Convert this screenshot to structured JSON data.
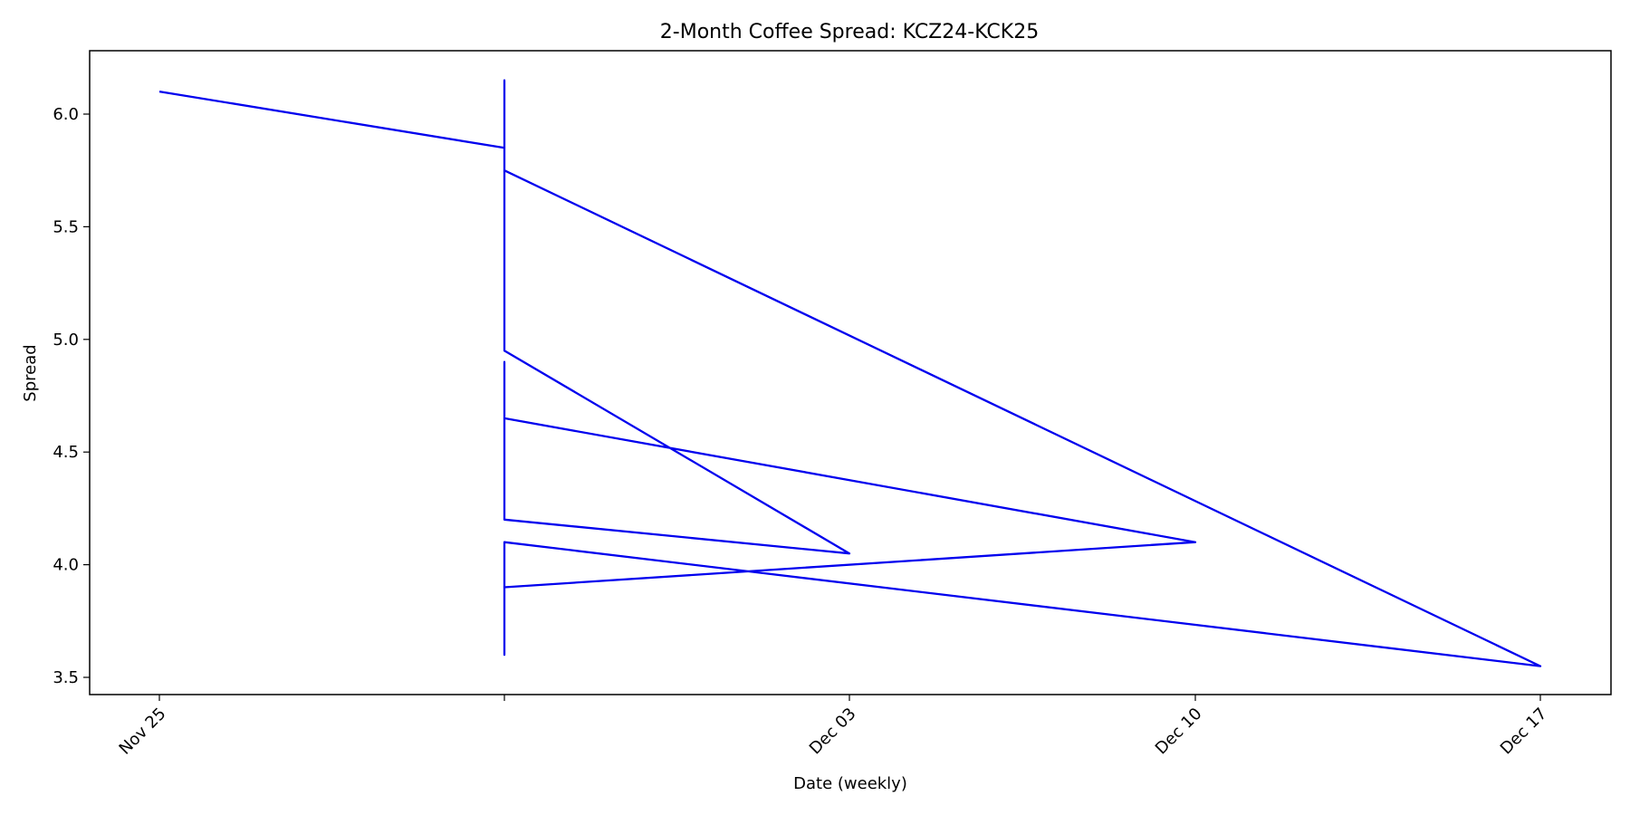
{
  "chart_data": {
    "type": "line",
    "title": "2-Month Coffee Spread: KCZ24-KCK25",
    "xlabel": "Date (weekly)",
    "ylabel": "Spread",
    "x_ticks": [
      {
        "date": "2024-11-25",
        "label": "Nov 25"
      },
      {
        "date": "2024-11-26",
        "label": ""
      },
      {
        "date": "2024-12-03",
        "label": "Dec 03"
      },
      {
        "date": "2024-12-10",
        "label": "Dec 10"
      },
      {
        "date": "2024-12-17",
        "label": "Dec 17"
      }
    ],
    "y_ticks": [
      3.5,
      4.0,
      4.5,
      5.0,
      5.5,
      6.0
    ],
    "ylim": [
      3.42,
      6.27
    ],
    "grid": false,
    "line_color": "#0000ee",
    "series": [
      {
        "points": [
          {
            "x": "2024-11-25",
            "y": 6.1
          },
          {
            "x": "2024-11-26",
            "y": 5.85
          },
          {
            "x": "2024-11-26",
            "y": 6.15
          },
          {
            "x": "2024-11-26",
            "y": 5.45
          },
          {
            "x": "2024-11-26",
            "y": 5.75
          },
          {
            "x": "2024-12-17",
            "y": 3.55
          },
          {
            "x": "2024-11-26",
            "y": 4.1
          },
          {
            "x": "2024-11-26",
            "y": 3.6
          },
          {
            "x": "2024-11-26",
            "y": 3.9
          },
          {
            "x": "2024-12-10",
            "y": 4.1
          },
          {
            "x": "2024-11-26",
            "y": 4.65
          },
          {
            "x": "2024-11-26",
            "y": 4.9
          },
          {
            "x": "2024-11-26",
            "y": 4.2
          },
          {
            "x": "2024-12-03",
            "y": 4.05
          },
          {
            "x": "2024-11-26",
            "y": 4.95
          },
          {
            "x": "2024-11-26",
            "y": 5.75
          }
        ]
      }
    ]
  }
}
